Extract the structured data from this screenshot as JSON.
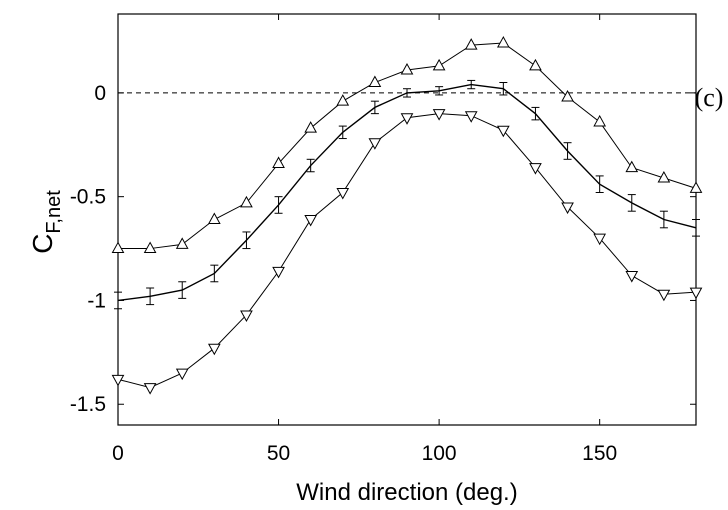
{
  "chart_data": {
    "type": "line",
    "xlabel": "Wind direction (deg.)",
    "ylabel": {
      "main": "C",
      "sub": "F,net"
    },
    "panel_label": "(c)",
    "xlim": [
      0,
      180
    ],
    "ylim": [
      -1.6,
      0.38
    ],
    "xticks": [
      0,
      50,
      100,
      150
    ],
    "xtick_labels": [
      "0",
      "50",
      "100",
      "150"
    ],
    "yticks": [
      -1.5,
      -1,
      -0.5,
      0
    ],
    "ytick_labels": [
      "-1.5",
      "-1",
      "-0.5",
      "0"
    ],
    "grid": false,
    "reference_line": {
      "y": 0,
      "style": "dashed"
    },
    "x": [
      0,
      10,
      20,
      30,
      40,
      50,
      60,
      70,
      80,
      90,
      100,
      110,
      120,
      130,
      140,
      150,
      160,
      170,
      180
    ],
    "series": [
      {
        "marker": "triangle-up",
        "values": [
          -0.75,
          -0.75,
          -0.73,
          -0.61,
          -0.53,
          -0.34,
          -0.17,
          -0.04,
          0.05,
          0.11,
          0.13,
          0.23,
          0.24,
          0.13,
          -0.02,
          -0.14,
          -0.36,
          -0.41,
          -0.46
        ]
      },
      {
        "marker": "errorbar",
        "values": [
          -1.0,
          -0.98,
          -0.95,
          -0.87,
          -0.71,
          -0.54,
          -0.35,
          -0.19,
          -0.07,
          0.0,
          0.01,
          0.04,
          0.02,
          -0.1,
          -0.28,
          -0.44,
          -0.53,
          -0.61,
          -0.65
        ],
        "error": [
          0.04,
          0.04,
          0.04,
          0.04,
          0.04,
          0.04,
          0.03,
          0.03,
          0.03,
          0.02,
          0.02,
          0.02,
          0.03,
          0.03,
          0.04,
          0.04,
          0.04,
          0.04,
          0.04
        ]
      },
      {
        "marker": "triangle-down",
        "values": [
          -1.38,
          -1.42,
          -1.35,
          -1.23,
          -1.07,
          -0.86,
          -0.61,
          -0.48,
          -0.24,
          -0.12,
          -0.1,
          -0.11,
          -0.18,
          -0.36,
          -0.55,
          -0.7,
          -0.88,
          -0.97,
          -0.96
        ]
      }
    ]
  }
}
